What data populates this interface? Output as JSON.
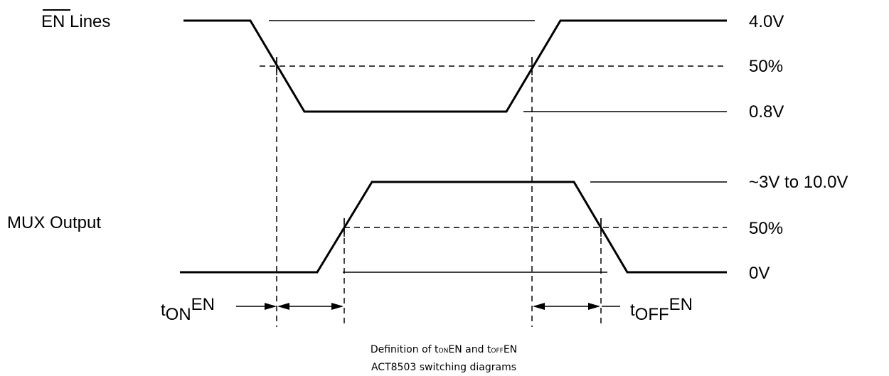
{
  "signals": {
    "en": {
      "name": "EN",
      "suffix": " Lines"
    },
    "mux": {
      "name": "MUX Output"
    }
  },
  "levels": {
    "en_high": "4.0V",
    "en_mid": "50%",
    "en_low": "0.8V",
    "mux_high": "~3V to 10.0V",
    "mux_mid": "50%",
    "mux_low": "0V"
  },
  "timing": {
    "ton": {
      "t": "t",
      "sub": "ON",
      "sup": "EN"
    },
    "toff": {
      "t": "t",
      "sub": "OFF",
      "sup": "EN"
    }
  },
  "caption": {
    "line1": {
      "pre": "Definition of t",
      "sub1": "ON",
      "mid": "EN and t",
      "sub2": "OFF",
      "post": "EN"
    },
    "line2": "ACT8503 switching diagrams"
  }
}
